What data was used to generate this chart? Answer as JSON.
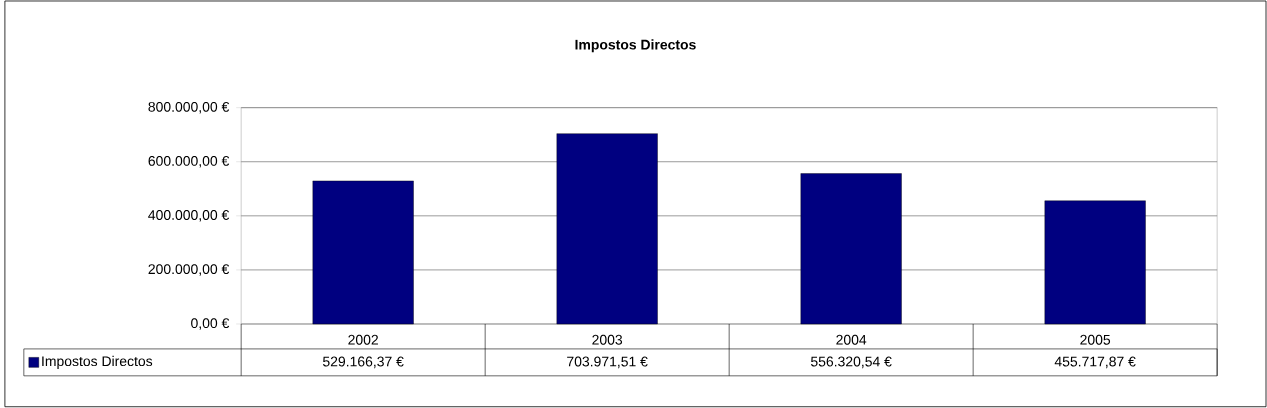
{
  "chart_data": {
    "type": "bar",
    "title": "Impostos Directos",
    "categories": [
      "2002",
      "2003",
      "2004",
      "2005"
    ],
    "series": [
      {
        "name": "Impostos Directos",
        "color": "#000080",
        "values": [
          529166.37,
          703971.51,
          556320.54,
          455717.87
        ],
        "value_labels": [
          "529.166,37 €",
          "703.971,51 €",
          "556.320,54 €",
          "455.717,87 €"
        ]
      }
    ],
    "ylim": [
      0,
      800000
    ],
    "yticks": [
      {
        "value": 0,
        "label": "0,00 €"
      },
      {
        "value": 200000,
        "label": "200.000,00 €"
      },
      {
        "value": 400000,
        "label": "400.000,00 €"
      },
      {
        "value": 600000,
        "label": "600.000,00 €"
      },
      {
        "value": 800000,
        "label": "800.000,00 €"
      }
    ],
    "grid": "y",
    "legend": "bottom left"
  }
}
